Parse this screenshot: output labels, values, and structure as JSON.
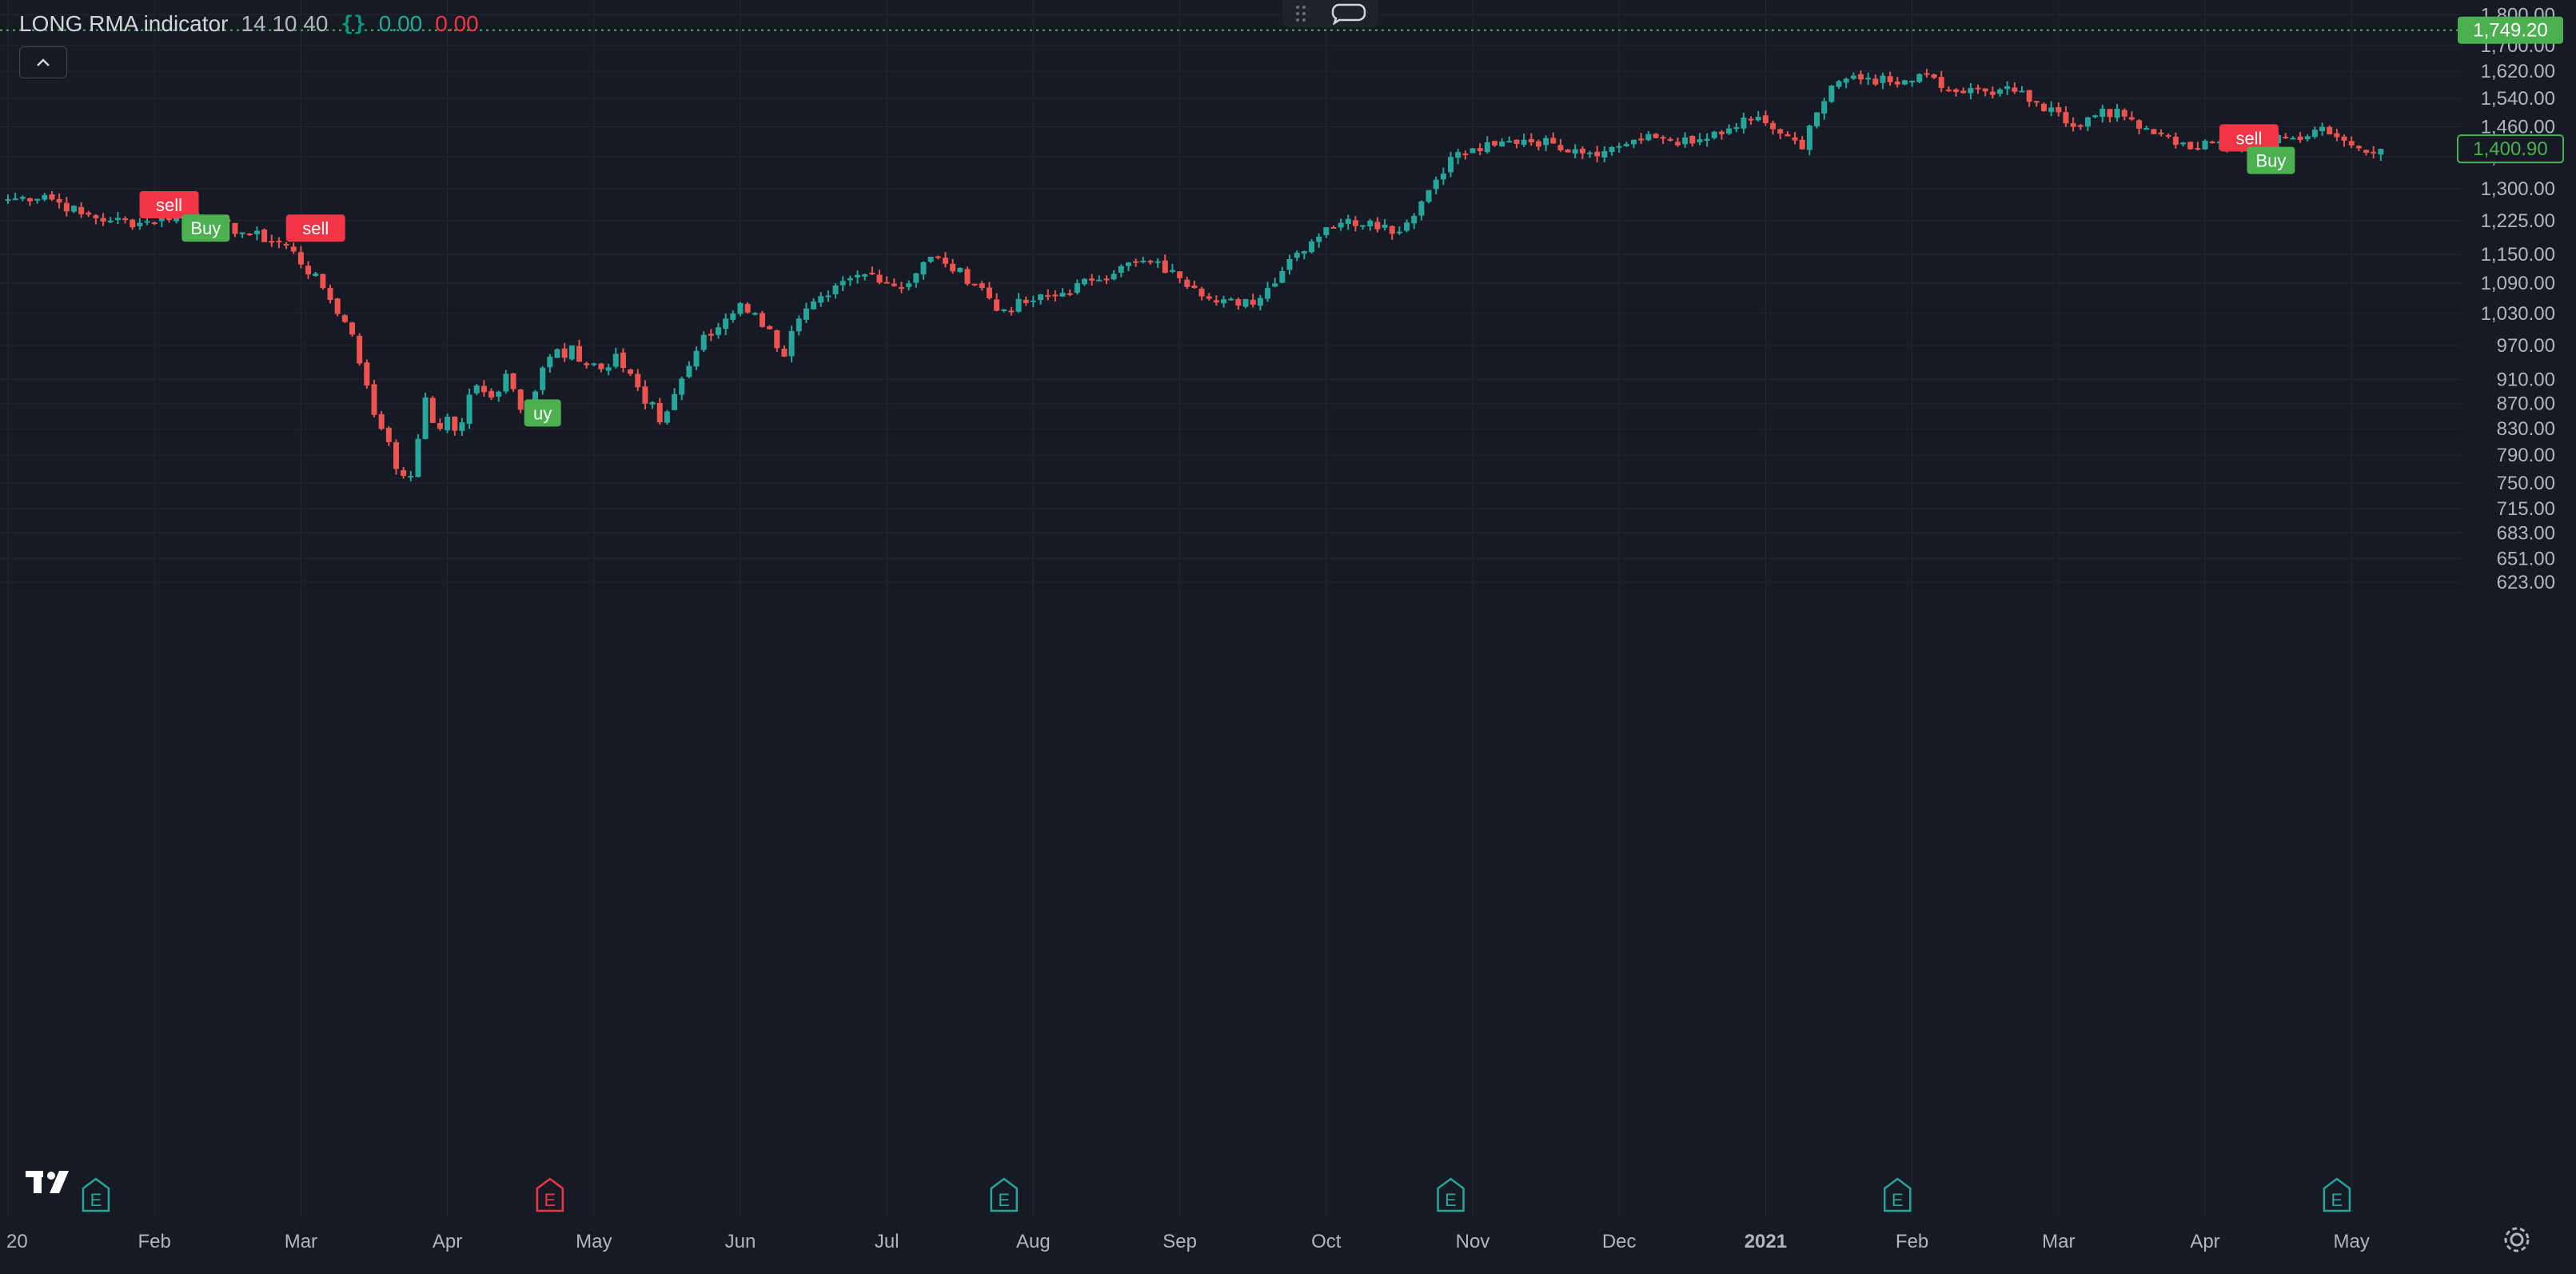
{
  "legend": {
    "indicator_name": "LONG RMA indicator",
    "params": "14 10 40",
    "code_icon": "{}",
    "value_1": "0.00",
    "value_2": "0.00"
  },
  "colors": {
    "background": "#161a25",
    "grid": "#232733",
    "up": "#26a69a",
    "down": "#ef5350",
    "buy_label": "#4caf50",
    "sell_label": "#f23645",
    "axis_text": "#b2b5be",
    "price_line": "#4caf50"
  },
  "icons": {
    "collapse": "chevron-up-icon",
    "drag": "drag-handle-icon",
    "comment": "speech-bubble-icon",
    "logo": "tradingview-logo",
    "settings": "gear-icon",
    "earnings": "earnings-e-icon"
  },
  "price_axis": {
    "labels": [
      "1,800.00",
      "1,700.00",
      "1,620.00",
      "1,540.00",
      "1,460.00",
      "1,380.00",
      "1,300.00",
      "1,225.00",
      "1,150.00",
      "1,090.00",
      "1,030.00",
      "970.00",
      "910.00",
      "870.00",
      "830.00",
      "790.00",
      "750.00",
      "715.00",
      "683.00",
      "651.00",
      "623.00"
    ],
    "values": [
      1800,
      1700,
      1620,
      1540,
      1460,
      1380,
      1300,
      1225,
      1150,
      1090,
      1030,
      970,
      910,
      870,
      830,
      790,
      750,
      715,
      683,
      651,
      623
    ],
    "price_line_value": 1749.2,
    "price_line_label": "1,749.20",
    "last_price_value": 1400.9,
    "last_price_label": "1,400.90"
  },
  "time_axis": {
    "labels": [
      "20",
      "Feb",
      "Mar",
      "Apr",
      "May",
      "Jun",
      "Jul",
      "Aug",
      "Sep",
      "Oct",
      "Nov",
      "Dec",
      "2021",
      "Feb",
      "Mar",
      "Apr",
      "May"
    ],
    "day_index": [
      0,
      20,
      40,
      60,
      80,
      100,
      120,
      140,
      160,
      180,
      200,
      220,
      240,
      260,
      280,
      300,
      320
    ],
    "bold": [
      false,
      false,
      false,
      false,
      false,
      false,
      false,
      false,
      false,
      false,
      false,
      false,
      true,
      false,
      false,
      false,
      false
    ]
  },
  "earnings_markers": [
    {
      "label": "E",
      "day": 12,
      "type": "neutral"
    },
    {
      "label": "E",
      "day": 74,
      "type": "negative"
    },
    {
      "label": "E",
      "day": 136,
      "type": "neutral"
    },
    {
      "label": "E",
      "day": 197,
      "type": "neutral"
    },
    {
      "label": "E",
      "day": 258,
      "type": "neutral"
    },
    {
      "label": "E",
      "day": 318,
      "type": "neutral"
    }
  ],
  "chart_data": {
    "type": "candlestick",
    "title": "",
    "xlabel": "",
    "ylabel": "",
    "ylim": [
      600,
      1820
    ],
    "scale": "log",
    "series": [
      {
        "name": "",
        "keyframes": {
          "day": [
            0,
            5,
            10,
            14,
            18,
            23,
            27,
            33,
            38,
            43,
            47,
            49,
            51,
            53,
            55,
            57,
            59,
            62,
            64,
            66,
            68,
            70,
            72,
            74,
            77,
            79,
            83,
            87,
            89,
            94,
            98,
            100,
            104,
            106,
            108,
            112,
            115,
            118,
            122,
            126,
            128,
            133,
            135,
            140,
            143,
            148,
            152,
            156,
            160,
            162,
            168,
            171,
            175,
            180,
            182,
            186,
            190,
            193,
            197,
            203,
            207,
            211,
            214,
            218,
            222,
            226,
            230,
            234,
            238,
            240,
            245,
            247,
            250,
            254,
            258,
            262,
            264,
            267,
            270,
            273,
            276,
            280,
            282,
            286,
            290,
            294,
            298,
            302,
            304,
            308,
            312,
            316,
            320,
            324
          ],
          "close": [
            1275,
            1285,
            1240,
            1225,
            1220,
            1240,
            1225,
            1195,
            1170,
            1080,
            990,
            900,
            830,
            770,
            760,
            880,
            830,
            840,
            900,
            880,
            920,
            860,
            890,
            950,
            970,
            935,
            955,
            870,
            840,
            960,
            1020,
            1050,
            1000,
            950,
            1020,
            1065,
            1100,
            1110,
            1080,
            1145,
            1130,
            1080,
            1035,
            1055,
            1065,
            1095,
            1125,
            1135,
            1100,
            1080,
            1045,
            1060,
            1140,
            1210,
            1220,
            1225,
            1200,
            1270,
            1380,
            1410,
            1425,
            1415,
            1400,
            1395,
            1425,
            1430,
            1415,
            1440,
            1480,
            1470,
            1400,
            1500,
            1590,
            1600,
            1580,
            1610,
            1570,
            1555,
            1560,
            1575,
            1530,
            1500,
            1460,
            1510,
            1480,
            1440,
            1400,
            1420,
            1395,
            1420,
            1430,
            1460,
            1410,
            1400.9
          ]
        }
      }
    ],
    "signals": [
      {
        "text": "sell",
        "day": 22,
        "price": 1262,
        "type": "sell"
      },
      {
        "text": "Buy",
        "day": 27,
        "price": 1208,
        "type": "buy"
      },
      {
        "text": "sell",
        "day": 42,
        "price": 1208,
        "type": "sell"
      },
      {
        "text": "uy",
        "day": 73,
        "price": 855,
        "type": "buy"
      },
      {
        "text": "sell",
        "day": 306,
        "price": 1430,
        "type": "sell"
      },
      {
        "text": "Buy",
        "day": 309,
        "price": 1371,
        "type": "buy"
      }
    ]
  }
}
